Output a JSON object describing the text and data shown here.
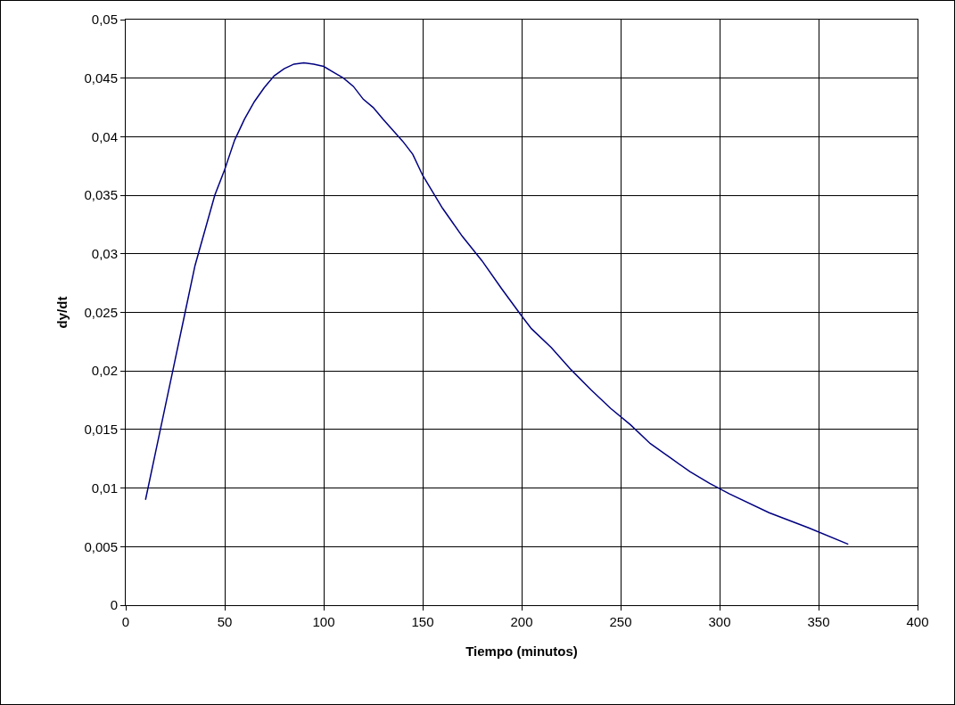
{
  "chart_data": {
    "type": "line",
    "xlabel": "Tiempo (minutos)",
    "ylabel": "dy/dt",
    "x": [
      10,
      15,
      20,
      25,
      30,
      35,
      40,
      45,
      50,
      55,
      60,
      65,
      70,
      75,
      80,
      85,
      90,
      95,
      100,
      105,
      110,
      115,
      120,
      125,
      130,
      140,
      145,
      150,
      160,
      170,
      180,
      190,
      200,
      205,
      215,
      225,
      235,
      245,
      255,
      265,
      275,
      285,
      295,
      305,
      325,
      345,
      365
    ],
    "series": [
      {
        "color": "#000080",
        "values": [
          0.009,
          0.013,
          0.017,
          0.021,
          0.025,
          0.029,
          0.032,
          0.035,
          0.0372,
          0.0397,
          0.0415,
          0.043,
          0.0442,
          0.0452,
          0.0458,
          0.0462,
          0.0463,
          0.0462,
          0.046,
          0.0455,
          0.045,
          0.0443,
          0.0432,
          0.0425,
          0.0415,
          0.0396,
          0.0385,
          0.0367,
          0.0339,
          0.0315,
          0.0294,
          0.027,
          0.0247,
          0.0236,
          0.022,
          0.0201,
          0.0184,
          0.0168,
          0.0154,
          0.0138,
          0.0126,
          0.0114,
          0.0104,
          0.0095,
          0.0079,
          0.0066,
          0.0052
        ]
      }
    ],
    "xlim": [
      0,
      400
    ],
    "xticks": [
      0,
      50,
      100,
      150,
      200,
      250,
      300,
      350,
      400
    ],
    "ylim": [
      0,
      0.05
    ],
    "yticks": [
      0,
      {
        "value": 0.005,
        "label": "0,005"
      },
      {
        "value": 0.01,
        "label": "0,01"
      },
      {
        "value": 0.015,
        "label": "0,015"
      },
      {
        "value": 0.02,
        "label": "0,02"
      },
      {
        "value": 0.025,
        "label": "0,025"
      },
      {
        "value": 0.03,
        "label": "0,03"
      },
      {
        "value": 0.035,
        "label": "0,035"
      },
      {
        "value": 0.04,
        "label": "0,04"
      },
      {
        "value": 0.045,
        "label": "0,045"
      },
      {
        "value": 0.05,
        "label": "0,05"
      }
    ],
    "grid": true,
    "marker": "none",
    "line_style": "solid"
  }
}
